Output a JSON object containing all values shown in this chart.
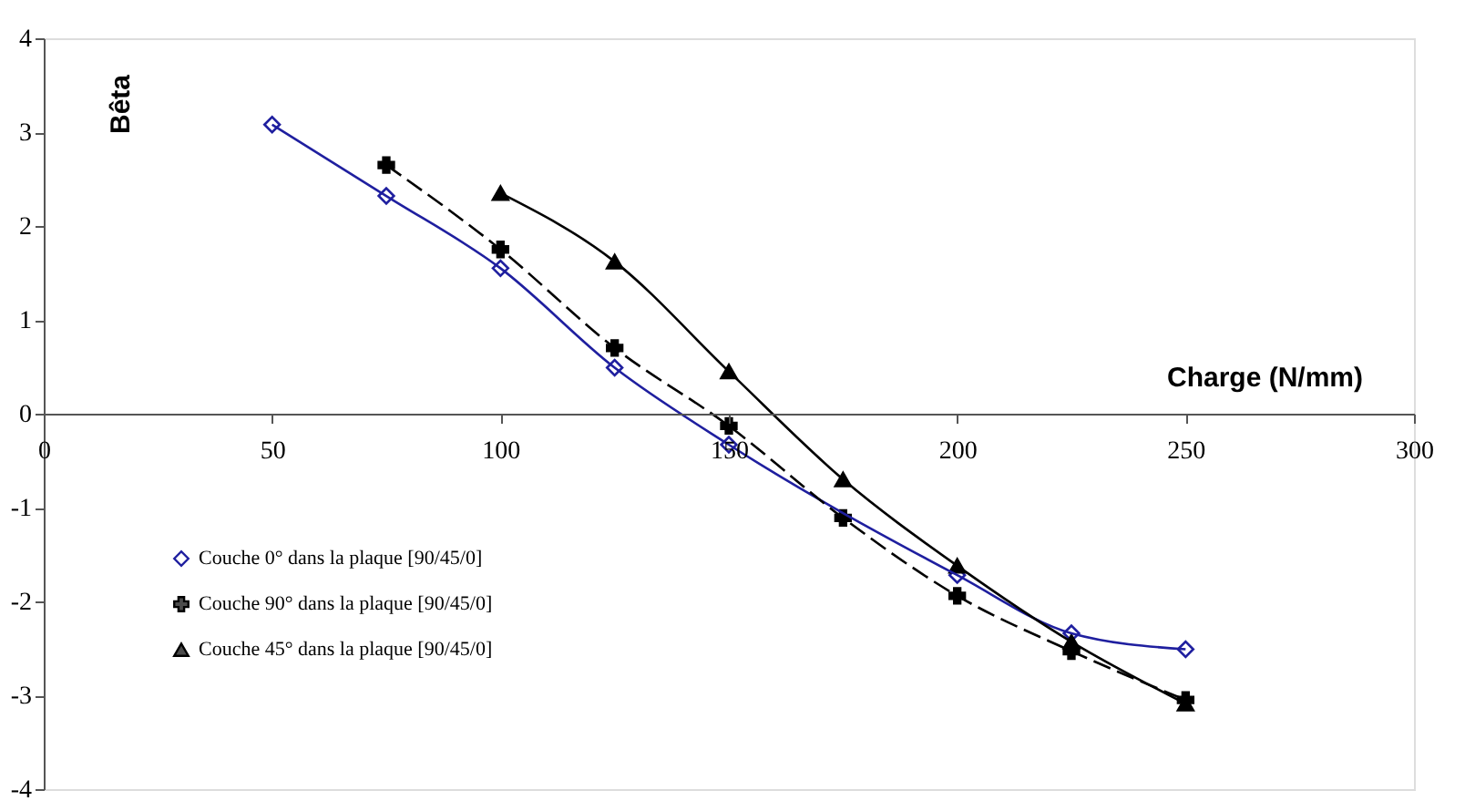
{
  "chart_data": {
    "type": "line",
    "xlabel": "Charge (N/mm)",
    "ylabel": "Bêta",
    "xlim": [
      0,
      300
    ],
    "xticks": [
      0,
      50,
      100,
      150,
      200,
      250,
      300
    ],
    "ylim": [
      -4,
      4
    ],
    "yticks": [
      -4,
      -3,
      -2,
      -1,
      0,
      1,
      2,
      3,
      4
    ],
    "grid": false,
    "legend": "bottom left",
    "series": [
      {
        "name": "Couche 0° dans la plaque [90/45/0]",
        "color": "#1f1f9f",
        "marker": "diamond",
        "line_style": "solid",
        "x": [
          50,
          75,
          100,
          125,
          150,
          175,
          200,
          225,
          250
        ],
        "values": [
          3.08,
          2.32,
          1.55,
          0.49,
          -0.33,
          null,
          -1.72,
          -2.34,
          -2.51
        ]
      },
      {
        "name": "Couche 90° dans la plaque [90/45/0]",
        "color": "#000000",
        "marker": "cross",
        "line_style": "dashed",
        "x": [
          75,
          100,
          125,
          150,
          175,
          200,
          225,
          250
        ],
        "values": [
          2.65,
          1.75,
          0.7,
          -0.13,
          -1.11,
          -1.94,
          -2.53,
          -3.05
        ]
      },
      {
        "name": "Couche 45° dans la plaque [90/45/0]",
        "color": "#000000",
        "marker": "triangle",
        "line_style": "solid",
        "x": [
          100,
          125,
          150,
          175,
          200,
          225,
          250
        ],
        "values": [
          2.35,
          1.62,
          0.45,
          -0.7,
          -1.62,
          -2.43,
          -3.09
        ]
      }
    ]
  }
}
